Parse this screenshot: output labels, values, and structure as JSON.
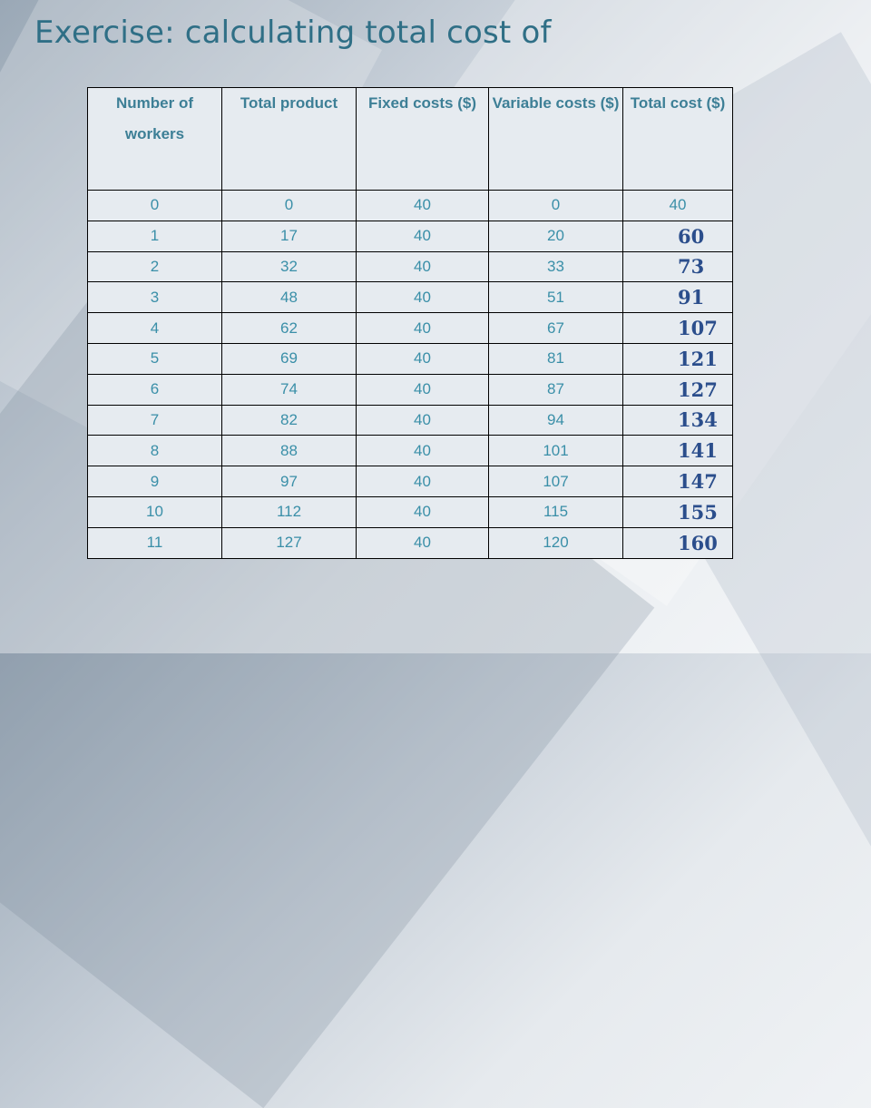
{
  "title": "Exercise: calculating total cost of",
  "table": {
    "headers": [
      "Number of workers",
      "Total product",
      "Fixed costs ($)",
      "Variable costs ($)",
      "Total cost ($)"
    ],
    "rows": [
      [
        "0",
        "0",
        "40",
        "0",
        "40"
      ],
      [
        "1",
        "17",
        "40",
        "20",
        "60"
      ],
      [
        "2",
        "32",
        "40",
        "33",
        "73"
      ],
      [
        "3",
        "48",
        "40",
        "51",
        "91"
      ],
      [
        "4",
        "62",
        "40",
        "67",
        "107"
      ],
      [
        "5",
        "69",
        "40",
        "81",
        "121"
      ],
      [
        "6",
        "74",
        "40",
        "87",
        "127"
      ],
      [
        "7",
        "82",
        "40",
        "94",
        "134"
      ],
      [
        "8",
        "88",
        "40",
        "101",
        "141"
      ],
      [
        "9",
        "97",
        "40",
        "107",
        "147"
      ],
      [
        "10",
        "112",
        "40",
        "115",
        "155"
      ],
      [
        "11",
        "127",
        "40",
        "120",
        "160"
      ]
    ]
  }
}
